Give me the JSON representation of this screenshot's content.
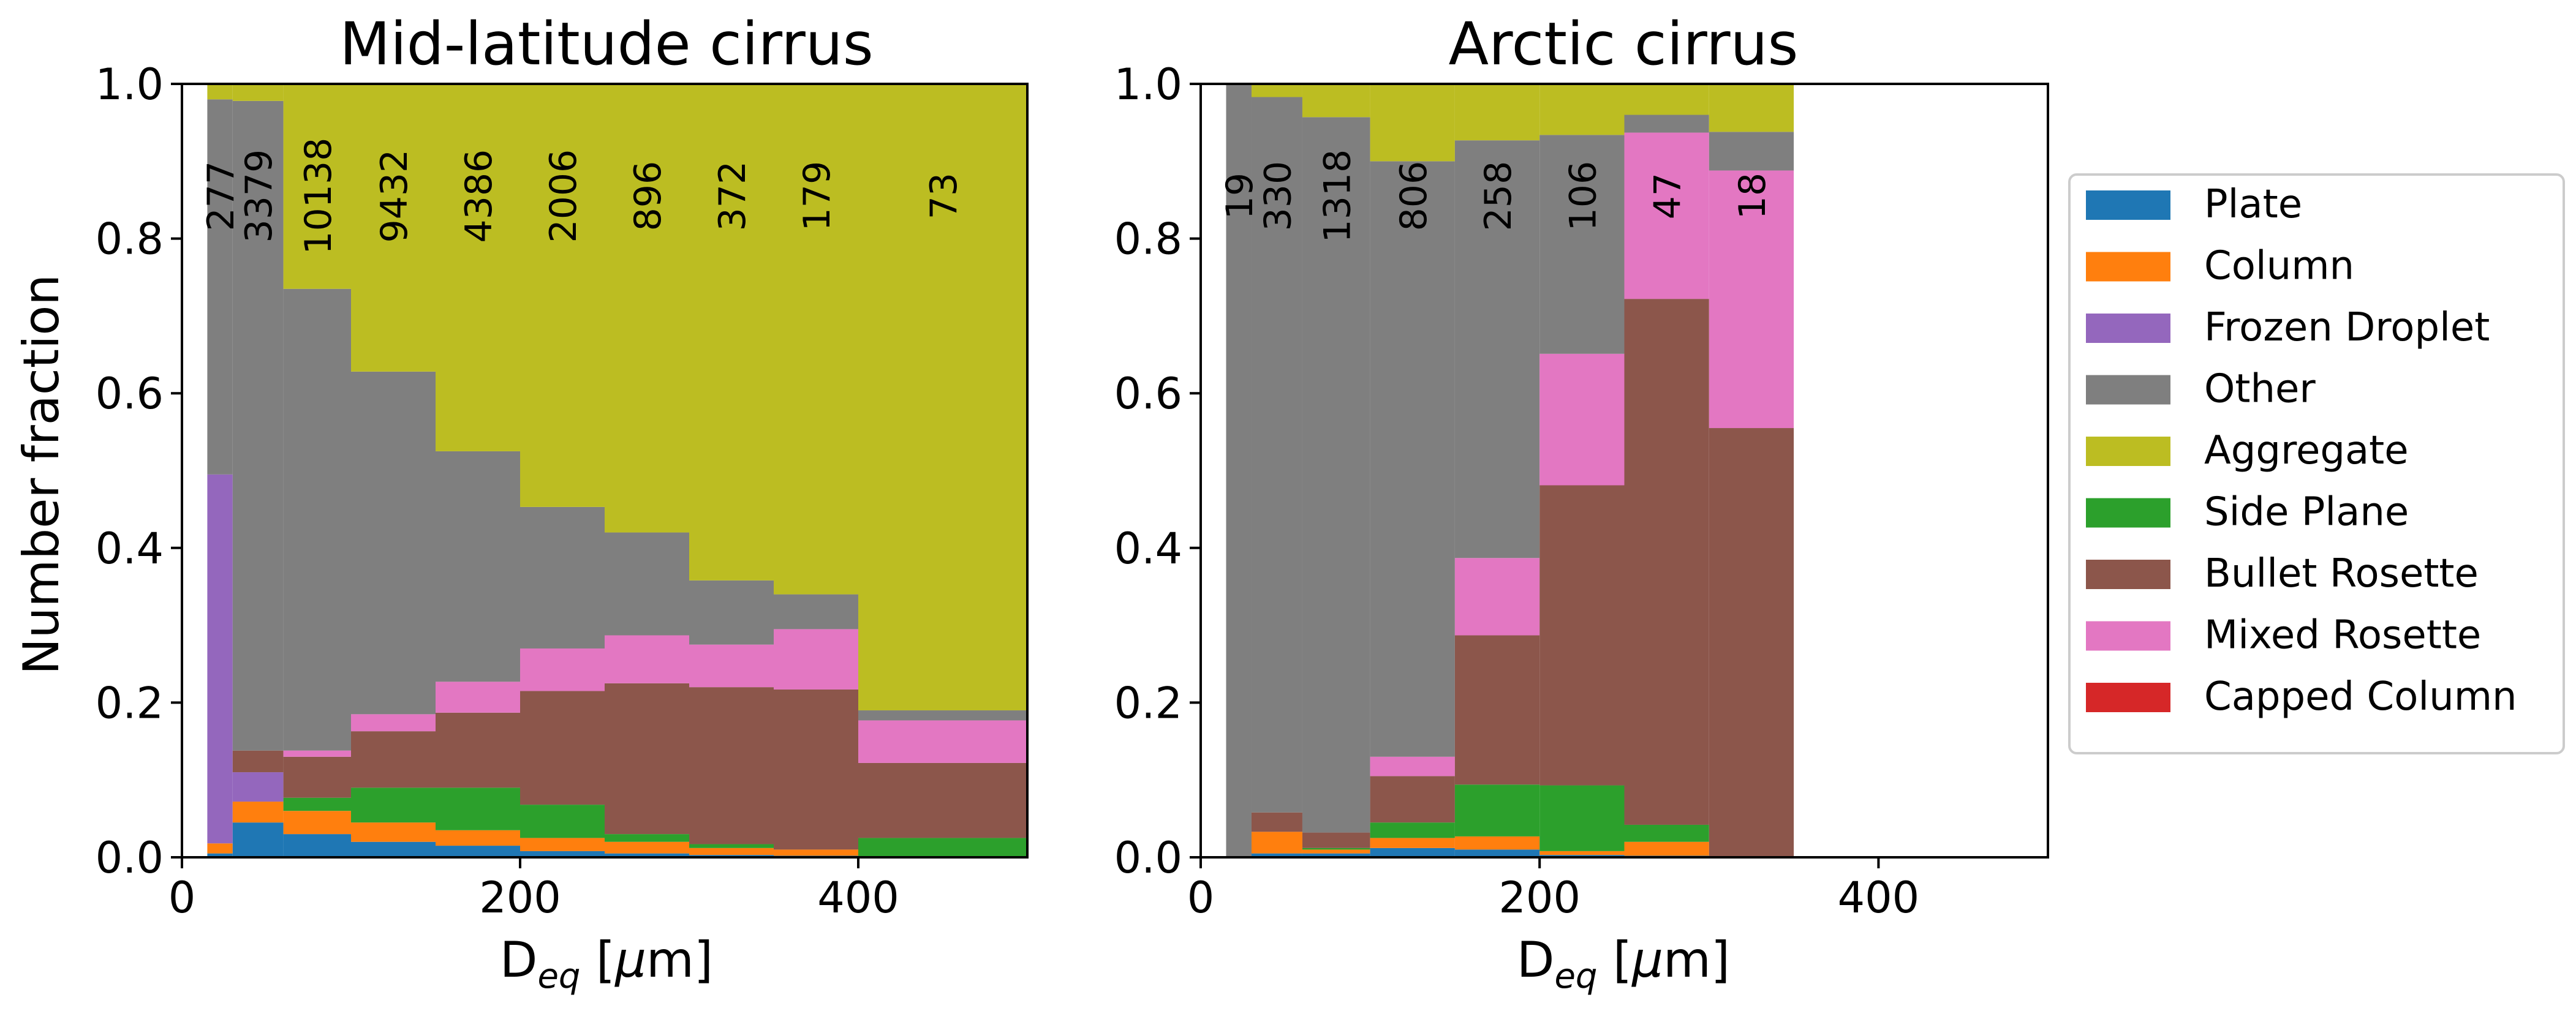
{
  "chart_data": [
    {
      "type": "bar",
      "stacked": true,
      "title": "Mid-latitude cirrus",
      "xlabel": "D_eq [μm]",
      "ylabel": "Number fraction",
      "xlim": [
        0,
        500
      ],
      "ylim": [
        0,
        1.0
      ],
      "xticks": [
        "0",
        "200",
        "400"
      ],
      "yticks": [
        "0.0",
        "0.2",
        "0.4",
        "0.6",
        "0.8",
        "1.0"
      ],
      "bin_edges": [
        15,
        30,
        60,
        100,
        150,
        200,
        250,
        300,
        350,
        400,
        500
      ],
      "counts": [
        "277",
        "3379",
        "10138",
        "9432",
        "4386",
        "2006",
        "896",
        "372",
        "179",
        "73"
      ],
      "series": [
        {
          "name": "Plate",
          "values": [
            0.005,
            0.045,
            0.03,
            0.02,
            0.015,
            0.008,
            0.005,
            0.003,
            0.002,
            0.0
          ]
        },
        {
          "name": "Column",
          "values": [
            0.013,
            0.027,
            0.03,
            0.025,
            0.02,
            0.017,
            0.015,
            0.009,
            0.008,
            0.0
          ]
        },
        {
          "name": "Frozen Droplet",
          "values": [
            0.477,
            0.038,
            0.0,
            0.0,
            0.0,
            0.0,
            0.0,
            0.0,
            0.0,
            0.0
          ]
        },
        {
          "name": "Side Plane",
          "values": [
            0.0,
            0.0,
            0.017,
            0.045,
            0.055,
            0.043,
            0.01,
            0.005,
            0.0,
            0.025
          ]
        },
        {
          "name": "Bullet Rosette",
          "values": [
            0.0,
            0.028,
            0.053,
            0.073,
            0.097,
            0.147,
            0.195,
            0.203,
            0.207,
            0.097
          ]
        },
        {
          "name": "Mixed Rosette",
          "values": [
            0.0,
            0.0,
            0.008,
            0.022,
            0.04,
            0.055,
            0.062,
            0.055,
            0.078,
            0.055
          ]
        },
        {
          "name": "Capped Column",
          "values": [
            0.0,
            0.0,
            0.0,
            0.0,
            0.0,
            0.0,
            0.0,
            0.0,
            0.0,
            0.0
          ]
        },
        {
          "name": "Other",
          "values": [
            0.485,
            0.84,
            0.597,
            0.443,
            0.298,
            0.183,
            0.133,
            0.083,
            0.045,
            0.013
          ]
        },
        {
          "name": "Aggregate",
          "values": [
            0.02,
            0.022,
            0.265,
            0.372,
            0.475,
            0.547,
            0.58,
            0.642,
            0.66,
            0.81
          ]
        }
      ]
    },
    {
      "type": "bar",
      "stacked": true,
      "title": "Arctic cirrus",
      "xlabel": "D_eq [μm]",
      "ylabel": "",
      "xlim": [
        0,
        500
      ],
      "ylim": [
        0,
        1.0
      ],
      "xticks": [
        "0",
        "200",
        "400"
      ],
      "yticks": [
        "0.0",
        "0.2",
        "0.4",
        "0.6",
        "0.8",
        "1.0"
      ],
      "bin_edges": [
        15,
        30,
        60,
        100,
        150,
        200,
        250,
        300,
        350
      ],
      "counts": [
        "19",
        "330",
        "1318",
        "806",
        "258",
        "106",
        "47",
        "18"
      ],
      "series": [
        {
          "name": "Plate",
          "values": [
            0.0,
            0.005,
            0.005,
            0.012,
            0.01,
            0.003,
            0.002,
            0.0
          ]
        },
        {
          "name": "Column",
          "values": [
            0.0,
            0.028,
            0.005,
            0.013,
            0.017,
            0.005,
            0.018,
            0.0
          ]
        },
        {
          "name": "Frozen Droplet",
          "values": [
            0.0,
            0.0,
            0.0,
            0.0,
            0.0,
            0.0,
            0.0,
            0.0
          ]
        },
        {
          "name": "Side Plane",
          "values": [
            0.0,
            0.0,
            0.002,
            0.02,
            0.067,
            0.085,
            0.022,
            0.0
          ]
        },
        {
          "name": "Bullet Rosette",
          "values": [
            0.0,
            0.025,
            0.02,
            0.06,
            0.193,
            0.388,
            0.68,
            0.555
          ]
        },
        {
          "name": "Mixed Rosette",
          "values": [
            0.0,
            0.0,
            0.0,
            0.025,
            0.1,
            0.17,
            0.215,
            0.333
          ]
        },
        {
          "name": "Capped Column",
          "values": [
            0.0,
            0.0,
            0.0,
            0.0,
            0.0,
            0.0,
            0.0,
            0.0
          ]
        },
        {
          "name": "Other",
          "values": [
            1.0,
            0.925,
            0.925,
            0.77,
            0.54,
            0.283,
            0.023,
            0.05
          ]
        },
        {
          "name": "Aggregate",
          "values": [
            0.0,
            0.017,
            0.043,
            0.1,
            0.073,
            0.066,
            0.04,
            0.062
          ]
        }
      ]
    }
  ],
  "legend": {
    "placement": "right",
    "entries": [
      "Plate",
      "Column",
      "Frozen Droplet",
      "Other",
      "Aggregate",
      "Side Plane",
      "Bullet Rosette",
      "Mixed Rosette",
      "Capped Column"
    ]
  },
  "colors": {
    "Plate": "#1f77b4",
    "Column": "#ff7f0e",
    "Frozen Droplet": "#9467bd",
    "Other": "#7f7f7f",
    "Aggregate": "#bcbd22",
    "Side Plane": "#2ca02c",
    "Bullet Rosette": "#8c564b",
    "Mixed Rosette": "#e377c2",
    "Capped Column": "#d62728"
  }
}
